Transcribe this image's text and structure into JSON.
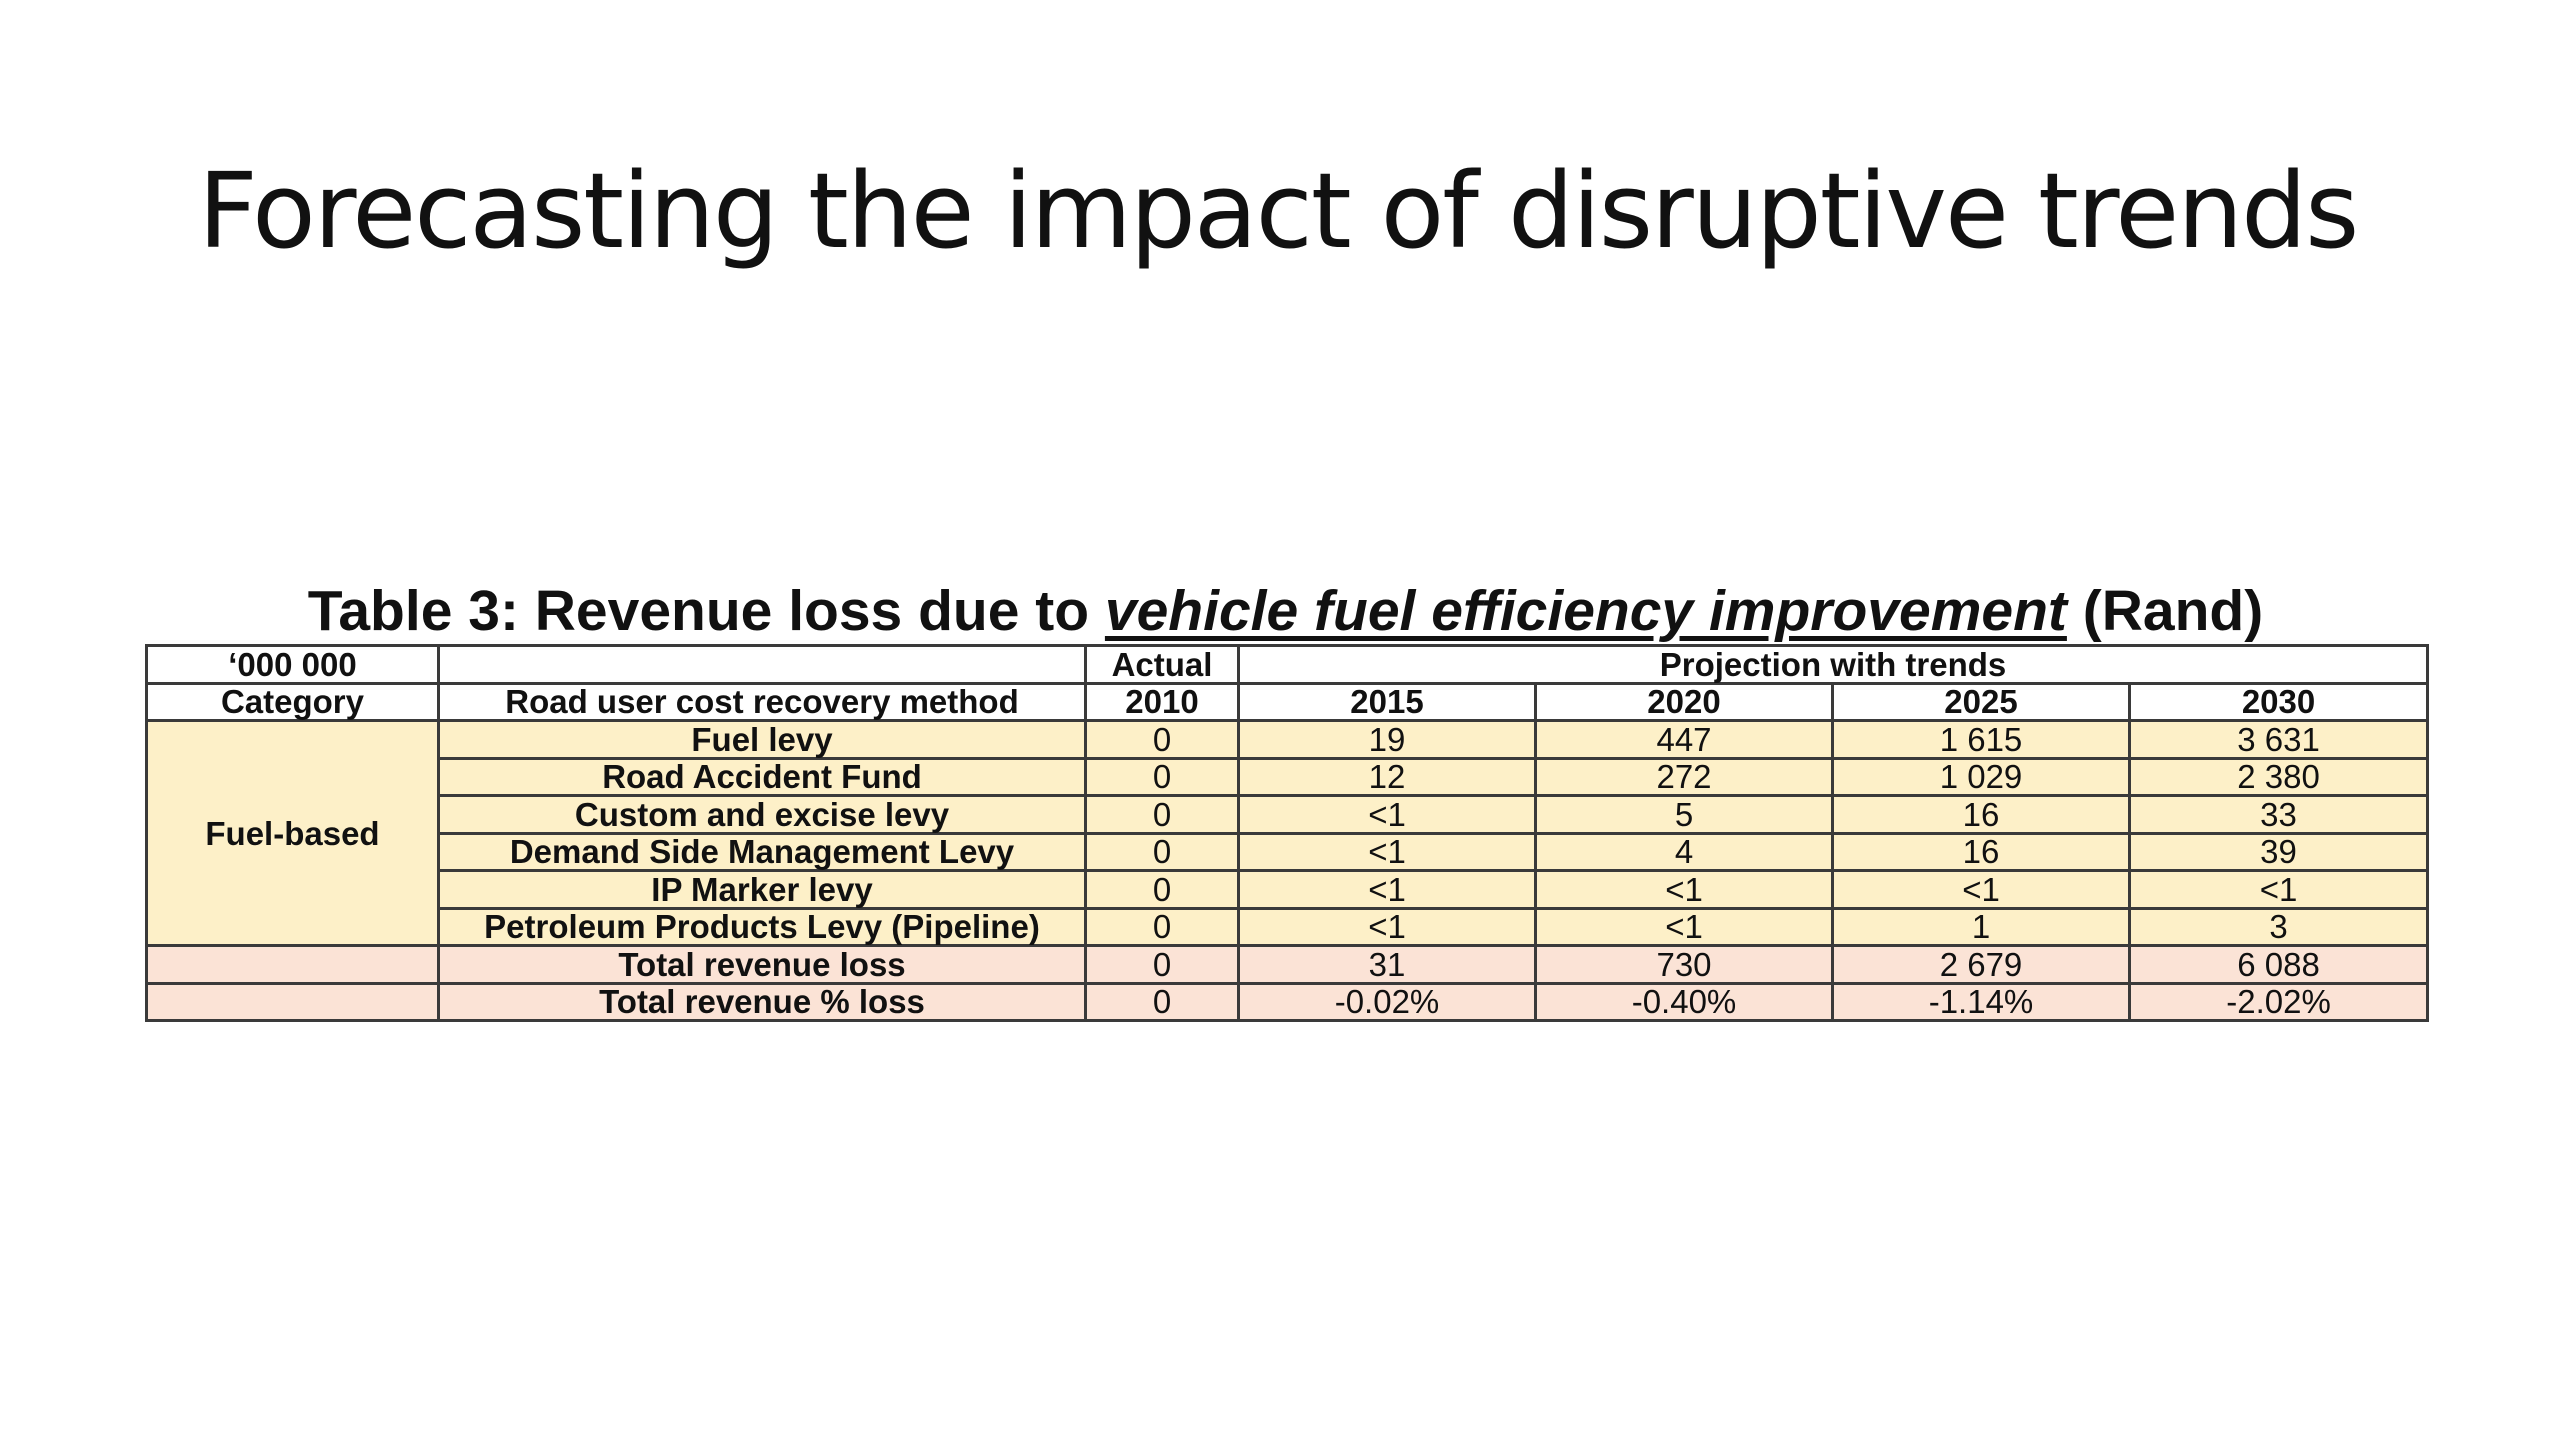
{
  "slide": {
    "title": "Forecasting the impact of disruptive trends"
  },
  "table": {
    "caption_prefix": "Table 3: Revenue loss due to ",
    "caption_emphasis": "vehicle fuel efficiency improvement",
    "caption_suffix": " (Rand)",
    "header_row1": {
      "units": "‘000 000",
      "actual": "Actual",
      "projection": "Projection with trends"
    },
    "header_row2": [
      "Category",
      "Road user cost recovery method",
      "2010",
      "2015",
      "2020",
      "2025",
      "2030"
    ],
    "fuel_category": "Fuel-based",
    "fuel_rows": [
      {
        "method": "Fuel levy",
        "values": [
          "0",
          "19",
          "447",
          "1 615",
          "3 631"
        ]
      },
      {
        "method": "Road Accident Fund",
        "values": [
          "0",
          "12",
          "272",
          "1 029",
          "2 380"
        ]
      },
      {
        "method": "Custom and excise levy",
        "values": [
          "0",
          "<1",
          "5",
          "16",
          "33"
        ]
      },
      {
        "method": "Demand Side Management Levy",
        "values": [
          "0",
          "<1",
          "4",
          "16",
          "39"
        ]
      },
      {
        "method": "IP Marker levy",
        "values": [
          "0",
          "<1",
          "<1",
          "<1",
          "<1"
        ]
      },
      {
        "method": "Petroleum Products Levy (Pipeline)",
        "values": [
          "0",
          "<1",
          "<1",
          "1",
          "3"
        ]
      }
    ],
    "total_rows": [
      {
        "method": "Total revenue loss",
        "values": [
          "0",
          "31",
          "730",
          "2 679",
          "6 088"
        ]
      },
      {
        "method": "Total revenue % loss",
        "values": [
          "0",
          "-0.02%",
          "-0.40%",
          "-1.14%",
          "-2.02%"
        ]
      }
    ],
    "colors": {
      "fuel_fill": "#fdf0c8",
      "total_fill": "#fbe3d6",
      "border": "#3a3a3a"
    }
  }
}
